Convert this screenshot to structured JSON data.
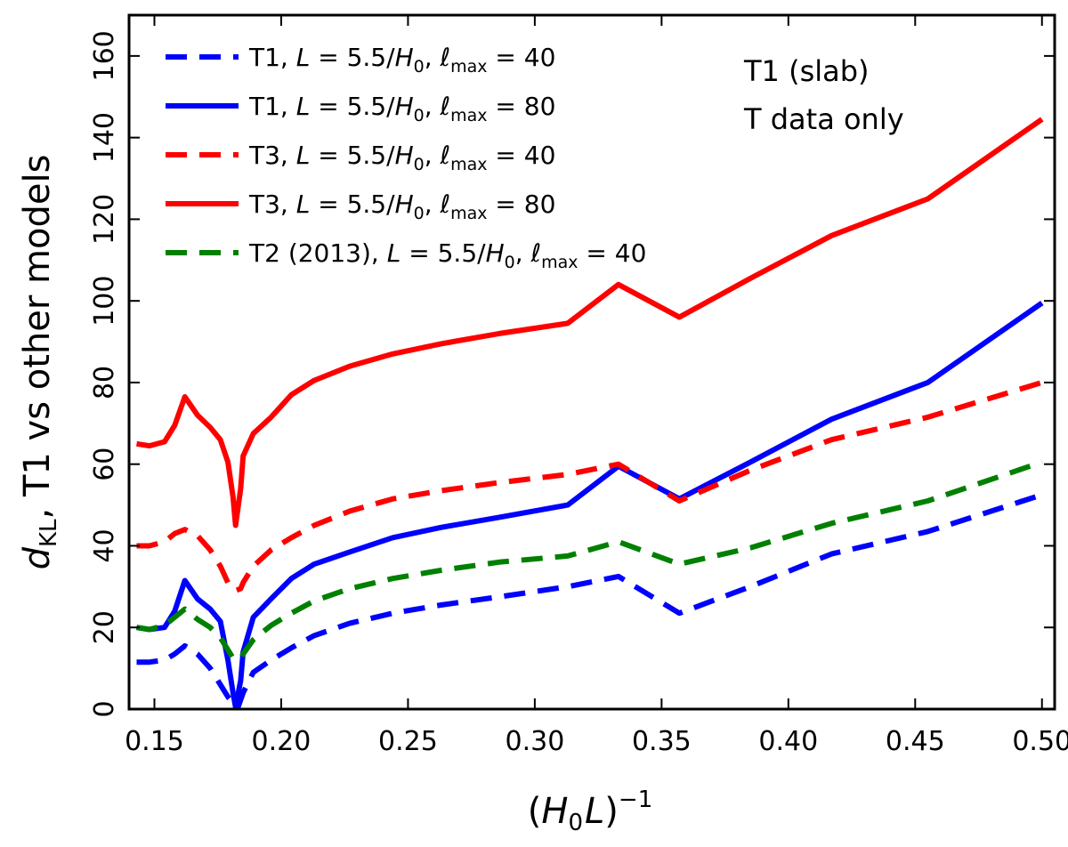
{
  "chart_data": {
    "type": "line",
    "title": "",
    "xlabel": "(H₀L)⁻¹",
    "ylabel": "d_KL, T1 vs other models",
    "xlabel_parts": {
      "open": "(",
      "h": "H",
      "h_sub": "0",
      "l": "L",
      "close": ")",
      "sup": "−1"
    },
    "ylabel_parts": {
      "d": "d",
      "d_sub": "KL",
      "rest": ", T1 vs other models"
    },
    "xlim": [
      0.14,
      0.505
    ],
    "ylim": [
      0,
      170
    ],
    "x_ticks": [
      0.15,
      0.2,
      0.25,
      0.3,
      0.35,
      0.4,
      0.45,
      0.5
    ],
    "x_tick_labels": [
      "0.15",
      "0.20",
      "0.25",
      "0.30",
      "0.35",
      "0.40",
      "0.45",
      "0.50"
    ],
    "y_ticks": [
      0,
      20,
      40,
      60,
      80,
      100,
      120,
      140,
      160
    ],
    "y_tick_labels": [
      "0",
      "20",
      "40",
      "60",
      "80",
      "100",
      "120",
      "140",
      "160"
    ],
    "grid": false,
    "legend_position": "top-left",
    "annotations": [
      "T1 (slab)",
      "T data only"
    ],
    "series": [
      {
        "name": "T1, L = 5.5/H₀, ℓmax = 40",
        "legend_parts": {
          "model": "T1",
          "L": "L",
          "eq1": " = 5.5/",
          "H": "H",
          "H_sub": "0",
          "ell": "ℓ",
          "ell_sub": "max",
          "eq2": " = 40"
        },
        "color": "#0000ff",
        "dashed": true,
        "x": [
          0.143,
          0.148,
          0.154,
          0.158,
          0.162,
          0.167,
          0.172,
          0.176,
          0.179,
          0.181,
          0.182,
          0.183,
          0.185,
          0.189,
          0.196,
          0.204,
          0.213,
          0.227,
          0.244,
          0.263,
          0.286,
          0.313,
          0.333,
          0.357,
          0.385,
          0.417,
          0.455,
          0.5
        ],
        "y": [
          11.5,
          11.5,
          12,
          13.5,
          15.5,
          13.5,
          10,
          6,
          3,
          1.5,
          0.5,
          0.5,
          4,
          9,
          12,
          15,
          18,
          21,
          23.5,
          25.5,
          27.5,
          30,
          32.5,
          23.5,
          30,
          38,
          43.5,
          52.5
        ]
      },
      {
        "name": "T1, L = 5.5/H₀, ℓmax = 80",
        "legend_parts": {
          "model": "T1",
          "L": "L",
          "eq1": " = 5.5/",
          "H": "H",
          "H_sub": "0",
          "ell": "ℓ",
          "ell_sub": "max",
          "eq2": " = 80"
        },
        "color": "#0000ff",
        "dashed": false,
        "x": [
          0.143,
          0.148,
          0.154,
          0.158,
          0.162,
          0.167,
          0.172,
          0.176,
          0.179,
          0.181,
          0.182,
          0.184,
          0.185,
          0.189,
          0.196,
          0.204,
          0.213,
          0.227,
          0.244,
          0.263,
          0.286,
          0.313,
          0.333,
          0.357,
          0.385,
          0.417,
          0.455,
          0.5
        ],
        "y": [
          20,
          19.5,
          20,
          24,
          31.5,
          27,
          24.5,
          21.5,
          12,
          4,
          0.5,
          7,
          14,
          22.5,
          27,
          32,
          35.5,
          38.5,
          42,
          44.5,
          47,
          50,
          59.5,
          51.5,
          60.5,
          71,
          80,
          99.5
        ]
      },
      {
        "name": "T3, L = 5.5/H₀, ℓmax = 40",
        "legend_parts": {
          "model": "T3",
          "L": "L",
          "eq1": " = 5.5/",
          "H": "H",
          "H_sub": "0",
          "ell": "ℓ",
          "ell_sub": "max",
          "eq2": " = 40"
        },
        "color": "#ff0000",
        "dashed": true,
        "x": [
          0.143,
          0.148,
          0.154,
          0.158,
          0.162,
          0.167,
          0.172,
          0.176,
          0.179,
          0.181,
          0.182,
          0.184,
          0.185,
          0.189,
          0.196,
          0.204,
          0.213,
          0.227,
          0.244,
          0.263,
          0.286,
          0.313,
          0.333,
          0.357,
          0.385,
          0.417,
          0.455,
          0.5
        ],
        "y": [
          40,
          40,
          41,
          43,
          44,
          42.5,
          39,
          35,
          31,
          29.5,
          29,
          29.5,
          31,
          35,
          39,
          42,
          45,
          48.5,
          51.5,
          53.5,
          55.5,
          57.5,
          60,
          51,
          58.5,
          66,
          71.5,
          80
        ]
      },
      {
        "name": "T3, L = 5.5/H₀, ℓmax = 80",
        "legend_parts": {
          "model": "T3",
          "L": "L",
          "eq1": " = 5.5/",
          "H": "H",
          "H_sub": "0",
          "ell": "ℓ",
          "ell_sub": "max",
          "eq2": " = 80"
        },
        "color": "#ff0000",
        "dashed": false,
        "x": [
          0.143,
          0.148,
          0.154,
          0.158,
          0.162,
          0.167,
          0.172,
          0.176,
          0.179,
          0.181,
          0.182,
          0.184,
          0.185,
          0.189,
          0.196,
          0.204,
          0.213,
          0.227,
          0.244,
          0.263,
          0.286,
          0.313,
          0.333,
          0.357,
          0.385,
          0.417,
          0.455,
          0.5
        ],
        "y": [
          65,
          64.5,
          65.5,
          69.5,
          76.5,
          72,
          69,
          66,
          60.5,
          52,
          45,
          54,
          62,
          67.5,
          71.5,
          77,
          80.5,
          84,
          87,
          89.5,
          92,
          94.5,
          104,
          96,
          105.5,
          116,
          125,
          144.5
        ]
      },
      {
        "name": "T2 (2013), L = 5.5/H₀, ℓmax = 40",
        "legend_parts": {
          "model": "T2 (2013)",
          "L": "L",
          "eq1": " = 5.5/",
          "H": "H",
          "H_sub": "0",
          "ell": "ℓ",
          "ell_sub": "max",
          "eq2": " = 40"
        },
        "color": "#008000",
        "dashed": true,
        "x": [
          0.143,
          0.148,
          0.154,
          0.158,
          0.162,
          0.167,
          0.172,
          0.176,
          0.179,
          0.181,
          0.182,
          0.184,
          0.185,
          0.189,
          0.196,
          0.204,
          0.213,
          0.227,
          0.244,
          0.263,
          0.286,
          0.313,
          0.333,
          0.357,
          0.385,
          0.417,
          0.455,
          0.5
        ],
        "y": [
          20,
          19.5,
          20.5,
          22.5,
          24.5,
          22,
          20,
          17.5,
          14.5,
          12.5,
          12,
          12.5,
          13.5,
          17,
          20.5,
          23.5,
          26.5,
          29.5,
          32,
          34,
          36,
          37.5,
          41,
          35.5,
          39.5,
          45.5,
          51,
          60.5
        ]
      }
    ]
  }
}
